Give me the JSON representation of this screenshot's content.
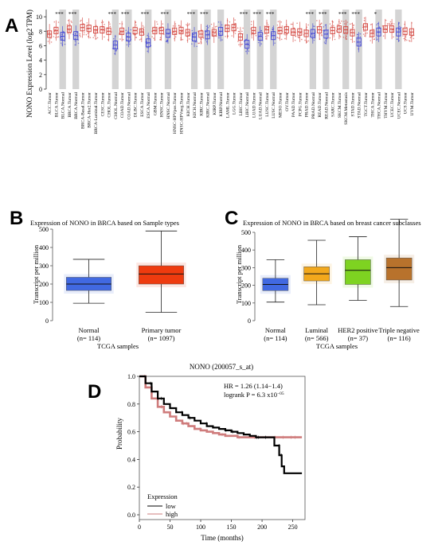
{
  "figure": {
    "panel_labels": [
      "A",
      "B",
      "C",
      "D"
    ]
  },
  "colors": {
    "tumor": "#d2413a",
    "normal": "#3b3fd6",
    "shade": "#d4d4d4",
    "bc_normal": "#4169e1",
    "bc_tumor": "#ee3b0f",
    "luminal": "#f2a81c",
    "her2": "#7ed321",
    "triple": "#b8722c",
    "km_low": "#000000",
    "km_high": "#cf7c7c"
  },
  "chart_data": [
    {
      "type": "box",
      "panel": "A",
      "ylabel": "NONO Expression Level (log2 TPM)",
      "ylim": [
        0,
        11
      ],
      "yticks": [
        0,
        2,
        4,
        6,
        8,
        10
      ],
      "categories": [
        "ACC.Tumor",
        "BLCA.Tumor",
        "BLCA.Normal",
        "BRCA.Tumor",
        "BRCA.Normal",
        "BRCA-Basal.Tumor",
        "BRCA-Her2.Tumor",
        "BRCA-Luminal.Tumor",
        "CESC.Tumor",
        "CHOL.Tumor",
        "CHOL.Normal",
        "COAD.Tumor",
        "COAD.Normal",
        "DLBC.Tumor",
        "ESCA.Tumor",
        "ESCA.Normal",
        "GBM.Tumor",
        "HNSC.Tumor",
        "HNSC.Normal",
        "HNSC-HPVpos.Tumor",
        "HNSC-HPVneg.Tumor",
        "KICH.Tumor",
        "KICH.Normal",
        "KIRC.Tumor",
        "KIRC.Normal",
        "KIRP.Tumor",
        "KIRP.Normal",
        "LAML.Tumor",
        "LGG.Tumor",
        "LIHC.Tumor",
        "LIHC.Normal",
        "LUAD.Tumor",
        "LUAD.Normal",
        "LUSC.Tumor",
        "LUSC.Normal",
        "MESO.Tumor",
        "OV.Tumor",
        "PAAD.Tumor",
        "PCPG.Tumor",
        "PRAD.Tumor",
        "PRAD.Normal",
        "READ.Tumor",
        "READ.Normal",
        "SARC.Tumor",
        "SKCM.Tumor",
        "SKCM.Metastasis",
        "STAD.Tumor",
        "STAD.Normal",
        "TGCT.Tumor",
        "THCA.Tumor",
        "THCA.Normal",
        "THYM.Tumor",
        "UCEC.Tumor",
        "UCEC.Normal",
        "UCS.Tumor",
        "UVM.Tumor"
      ],
      "medians": [
        7.6,
        8.1,
        7.3,
        8.3,
        7.4,
        8.5,
        8.4,
        8.2,
        8.2,
        8.0,
        6.1,
        8.0,
        7.2,
        8.1,
        7.9,
        6.4,
        8.1,
        8.1,
        7.7,
        8.0,
        8.1,
        7.8,
        7.2,
        7.6,
        7.5,
        7.8,
        8.0,
        8.4,
        8.5,
        7.2,
        6.2,
        8.1,
        7.3,
        8.2,
        7.4,
        8.1,
        8.2,
        7.9,
        7.9,
        7.7,
        7.7,
        8.2,
        7.6,
        8.1,
        8.3,
        8.2,
        7.8,
        6.5,
        8.6,
        7.7,
        7.9,
        8.3,
        8.3,
        7.9,
        8.0,
        7.9
      ],
      "shaded_categories": [
        "BLCA.Normal",
        "BRCA.Normal",
        "CHOL.Normal",
        "COAD.Normal",
        "ESCA.Normal",
        "HNSC.Normal",
        "KICH.Normal",
        "KIRC.Normal",
        "KIRP.Normal",
        "LIHC.Normal",
        "LUAD.Normal",
        "LUSC.Normal",
        "PRAD.Normal",
        "READ.Normal",
        "SKCM.Metastasis",
        "STAD.Normal",
        "THCA.Normal",
        "UCEC.Normal"
      ],
      "significance": [
        {
          "category": "BLCA.Normal",
          "label": "***"
        },
        {
          "category": "BRCA.Normal",
          "label": "***"
        },
        {
          "category": "CHOL.Normal",
          "label": "***"
        },
        {
          "category": "COAD.Normal",
          "label": "***"
        },
        {
          "category": "ESCA.Normal",
          "label": "***"
        },
        {
          "category": "HNSC.Normal",
          "label": "***"
        },
        {
          "category": "KICH.Normal",
          "label": "***"
        },
        {
          "category": "KIRC.Normal",
          "label": "***"
        },
        {
          "category": "LIHC.Normal",
          "label": "***"
        },
        {
          "category": "LUAD.Normal",
          "label": "***"
        },
        {
          "category": "LUSC.Normal",
          "label": "***"
        },
        {
          "category": "PRAD.Normal",
          "label": "***"
        },
        {
          "category": "READ.Normal",
          "label": "***"
        },
        {
          "category": "SKCM.Metastasis",
          "label": "***"
        },
        {
          "category": "STAD.Normal",
          "label": "***"
        },
        {
          "category": "THCA.Normal",
          "label": "*"
        }
      ]
    },
    {
      "type": "box",
      "panel": "B",
      "title": "Expression of NONO in BRCA based on Sample types",
      "ylabel": "Transcript per million",
      "xlabel": "TCGA samples",
      "ylim": [
        0,
        500
      ],
      "yticks": [
        0,
        100,
        200,
        300,
        400,
        500
      ],
      "groups": [
        {
          "name": "Normal",
          "n": "(n= 114)",
          "min": 95,
          "q1": 165,
          "median": 200,
          "q3": 237,
          "max": 335,
          "color": "#4169e1"
        },
        {
          "name": "Primary tumor",
          "n": "(n= 1097)",
          "min": 45,
          "q1": 200,
          "median": 255,
          "q3": 300,
          "max": 490,
          "color": "#ee3b0f"
        }
      ]
    },
    {
      "type": "box",
      "panel": "C",
      "title": "Expression of NONO in BRCA based on breast cancer subclasses",
      "ylabel": "Transcript per million",
      "xlabel": "TCGA samples",
      "ylim": [
        0,
        500
      ],
      "yticks": [
        0,
        100,
        200,
        300,
        400,
        500
      ],
      "groups": [
        {
          "name": "Normal",
          "n": "(n= 114)",
          "min": 105,
          "q1": 170,
          "median": 205,
          "q3": 240,
          "max": 345,
          "color": "#4169e1"
        },
        {
          "name": "Luminal",
          "n": "(n= 566)",
          "min": 90,
          "q1": 225,
          "median": 265,
          "q3": 305,
          "max": 455,
          "color": "#f2a81c"
        },
        {
          "name": "HER2 positive",
          "n": "(n= 37)",
          "min": 115,
          "q1": 205,
          "median": 285,
          "q3": 345,
          "max": 475,
          "color": "#7ed321"
        },
        {
          "name": "Triple negative",
          "n": "(n= 116)",
          "min": 80,
          "q1": 230,
          "median": 300,
          "q3": 355,
          "max": 575,
          "color": "#b8722c"
        }
      ]
    },
    {
      "type": "line",
      "panel": "D",
      "title": "NONO (200057_s_at)",
      "xlabel": "Time (months)",
      "ylabel": "Probability",
      "xlim": [
        0,
        270
      ],
      "ylim": [
        0,
        1.0
      ],
      "xticks": [
        0,
        50,
        100,
        150,
        200,
        250
      ],
      "yticks": [
        0.0,
        0.2,
        0.4,
        0.6,
        0.8,
        1.0
      ],
      "annotation_hr": "HR = 1.26 (1.14−1.4)",
      "annotation_logrank": "logrank P = 6.3 x10",
      "annotation_exp": "−05",
      "legend_title": "Expression",
      "series": [
        {
          "name": "low",
          "x": [
            0,
            10,
            20,
            30,
            40,
            50,
            60,
            70,
            80,
            90,
            100,
            110,
            120,
            130,
            140,
            150,
            160,
            170,
            180,
            190,
            200,
            210,
            220,
            228,
            232,
            236,
            245,
            265
          ],
          "y": [
            1.0,
            0.95,
            0.89,
            0.84,
            0.8,
            0.77,
            0.74,
            0.72,
            0.7,
            0.68,
            0.66,
            0.64,
            0.63,
            0.62,
            0.61,
            0.6,
            0.59,
            0.58,
            0.57,
            0.56,
            0.56,
            0.56,
            0.5,
            0.43,
            0.35,
            0.3,
            0.3,
            0.3
          ]
        },
        {
          "name": "high",
          "x": [
            0,
            10,
            20,
            30,
            40,
            50,
            60,
            70,
            80,
            90,
            100,
            110,
            120,
            130,
            140,
            150,
            160,
            170,
            180,
            190,
            200,
            210,
            220,
            240,
            265
          ],
          "y": [
            1.0,
            0.92,
            0.84,
            0.78,
            0.74,
            0.71,
            0.68,
            0.66,
            0.64,
            0.62,
            0.61,
            0.6,
            0.59,
            0.58,
            0.57,
            0.57,
            0.56,
            0.56,
            0.56,
            0.56,
            0.56,
            0.56,
            0.56,
            0.56,
            0.56
          ]
        }
      ]
    }
  ]
}
